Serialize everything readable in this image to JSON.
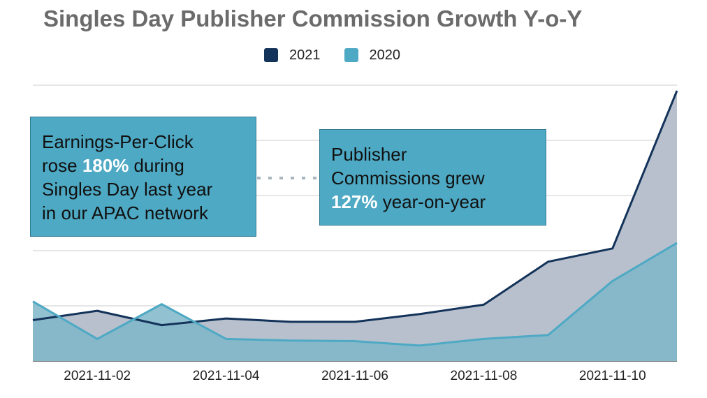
{
  "title": "Singles Day Publisher Commission Growth Y-o-Y",
  "legend": [
    {
      "label": "2021",
      "color": "#14335a"
    },
    {
      "label": "2020",
      "color": "#4ea9c4"
    }
  ],
  "callouts": {
    "left": {
      "line1": "Earnings-Per-Click",
      "pre2": "rose ",
      "bold": "180%",
      "post2": " during",
      "line3": "Singles Day last year",
      "line4": "in our APAC network"
    },
    "right": {
      "line1": "Publisher",
      "line2": "Commissions grew",
      "bold": "127%",
      "post3": " year-on-year"
    }
  },
  "chart_data": {
    "type": "area",
    "title": "Singles Day Publisher Commission Growth Y-o-Y",
    "x": [
      "2021-11-01",
      "2021-11-02",
      "2021-11-03",
      "2021-11-04",
      "2021-11-05",
      "2021-11-06",
      "2021-11-07",
      "2021-11-08",
      "2021-11-09",
      "2021-11-10",
      "2021-11-11"
    ],
    "x_tick_labels": [
      "2021-11-02",
      "2021-11-04",
      "2021-11-06",
      "2021-11-08",
      "2021-11-10"
    ],
    "series": [
      {
        "name": "2021",
        "color": "#14335a",
        "fill": "#b7c0cc",
        "values": [
          0.74,
          0.91,
          0.65,
          0.77,
          0.71,
          0.71,
          0.85,
          1.02,
          1.8,
          2.04,
          4.9
        ]
      },
      {
        "name": "2020",
        "color": "#4ea9c4",
        "fill": "#7fb6c9",
        "values": [
          1.08,
          0.4,
          1.03,
          0.4,
          0.37,
          0.36,
          0.28,
          0.4,
          0.47,
          1.45,
          2.14
        ]
      }
    ],
    "ylim": [
      0,
      5
    ],
    "gridlines": 5,
    "grid": true,
    "legend_position": "top"
  }
}
